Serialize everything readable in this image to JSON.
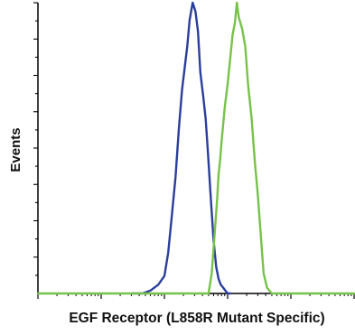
{
  "chart_data": {
    "type": "line",
    "title": "",
    "xlabel": "EGF Receptor (L858R Mutant Specific)",
    "ylabel": "Events",
    "x_scale": "log",
    "xlim": [
      1,
      100000
    ],
    "ylim": [
      0,
      100
    ],
    "grid": false,
    "legend": "none",
    "series": [
      {
        "color": "#2B3E9C",
        "x": [
          30,
          45,
          60,
          80,
          100,
          115,
          130,
          150,
          170,
          190,
          210,
          230,
          250,
          280,
          310,
          340,
          370,
          410,
          450,
          490,
          540,
          600,
          660,
          720,
          780,
          850,
          920,
          1000,
          1100
        ],
        "y": [
          0,
          0,
          1,
          3,
          6,
          14,
          26,
          40,
          57,
          70,
          78,
          85,
          94,
          100,
          97,
          90,
          76,
          68,
          60,
          48,
          33,
          18,
          9,
          5,
          3,
          2,
          1,
          0,
          0
        ]
      },
      {
        "color": "#77C24A",
        "x": [
          1,
          200,
          400,
          500,
          560,
          620,
          680,
          720,
          760,
          800,
          900,
          1000,
          1100,
          1200,
          1300,
          1400,
          1500,
          1700,
          1900,
          2100,
          2400,
          2700,
          3000,
          3400,
          3700,
          4200,
          5000,
          7000,
          100000
        ],
        "y": [
          0,
          0,
          0,
          0,
          7,
          20,
          32,
          41,
          46,
          52,
          64,
          72,
          81,
          89,
          93,
          100,
          95,
          91,
          85,
          72,
          60,
          45,
          34,
          18,
          7,
          2,
          0,
          0,
          0
        ]
      }
    ]
  }
}
